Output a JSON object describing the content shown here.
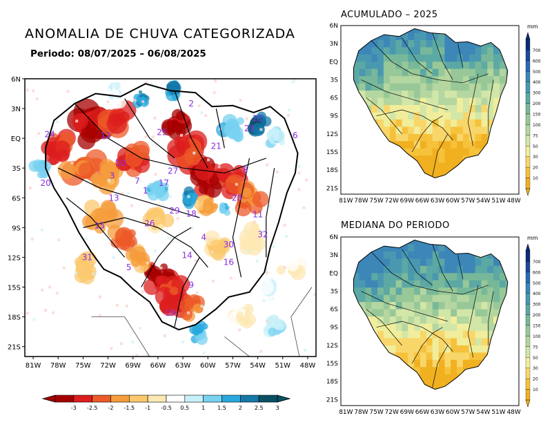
{
  "main": {
    "title": "ANOMALIA DE CHUVA CATEGORIZADA",
    "period": "Periodo: 08/07/2025 – 06/08/2025",
    "lat_labels": [
      "6N",
      "3N",
      "EQ",
      "3S",
      "6S",
      "9S",
      "12S",
      "15S",
      "18S",
      "21S"
    ],
    "lon_labels": [
      "81W",
      "78W",
      "75W",
      "72W",
      "69W",
      "66W",
      "63W",
      "60W",
      "57W",
      "54W",
      "51W",
      "48W"
    ],
    "basin_ids": [
      "1",
      "2",
      "3",
      "4",
      "5",
      "6",
      "7",
      "8",
      "9",
      "10",
      "11",
      "12",
      "13",
      "14",
      "15",
      "16",
      "17",
      "18",
      "19",
      "20",
      "21",
      "22",
      "23",
      "24",
      "25",
      "26",
      "27",
      "28",
      "29",
      "30",
      "31",
      "32"
    ],
    "legend": {
      "labels": [
        "-3",
        "-2.5",
        "-2",
        "-1.5",
        "-1",
        "-0.5",
        "0.5",
        "1",
        "1.5",
        "2",
        "2.5",
        "3"
      ],
      "colors": [
        "#a50000",
        "#dc1e1e",
        "#ec5a28",
        "#f59c3c",
        "#fbc86e",
        "#fde8b4",
        "#ffffff",
        "#c8f0fa",
        "#78d2f0",
        "#28a8dc",
        "#1478a8",
        "#0a5064"
      ]
    }
  },
  "panels": [
    {
      "title": "ACUMULADO – 2025"
    },
    {
      "title": "MEDIANA DO PERIODO"
    }
  ],
  "small_map": {
    "lat_labels": [
      "6N",
      "3N",
      "EQ",
      "3S",
      "6S",
      "9S",
      "12S",
      "15S",
      "18S",
      "21S"
    ],
    "lon_labels": [
      "81W",
      "78W",
      "75W",
      "72W",
      "69W",
      "66W",
      "63W",
      "60W",
      "57W",
      "54W",
      "51W",
      "48W"
    ]
  },
  "colorbar": {
    "unit": "mm",
    "labels": [
      "700",
      "600",
      "500",
      "400",
      "300",
      "200",
      "150",
      "100",
      "75",
      "50",
      "30",
      "20",
      "10"
    ],
    "colors": [
      "#0c2c78",
      "#1a4a9a",
      "#2a6ab4",
      "#3c86b8",
      "#4a98b0",
      "#5ca8a4",
      "#78b89a",
      "#98c898",
      "#b4d6a0",
      "#d2e6a8",
      "#f0ee9c",
      "#f8d66a",
      "#f6c23c",
      "#f0b020"
    ]
  }
}
